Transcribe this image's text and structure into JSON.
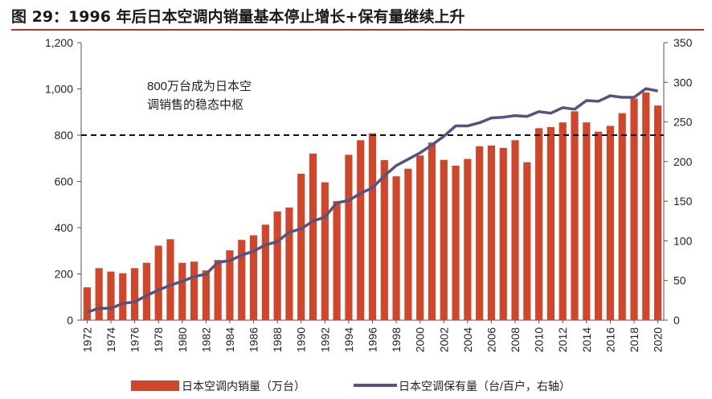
{
  "title": "图 29：1996 年后日本空调内销量基本停止增长+保有量继续上升",
  "chart_data": {
    "type": "bar+line",
    "years": [
      1972,
      1973,
      1974,
      1975,
      1976,
      1977,
      1978,
      1979,
      1980,
      1981,
      1982,
      1983,
      1984,
      1985,
      1986,
      1987,
      1988,
      1989,
      1990,
      1991,
      1992,
      1993,
      1994,
      1995,
      1996,
      1997,
      1998,
      1999,
      2000,
      2001,
      2002,
      2003,
      2004,
      2005,
      2006,
      2007,
      2008,
      2009,
      2010,
      2011,
      2012,
      2013,
      2014,
      2015,
      2016,
      2017,
      2018,
      2019,
      2020
    ],
    "x_tick_labels": [
      "1972",
      "1974",
      "1976",
      "1978",
      "1980",
      "1982",
      "1984",
      "1986",
      "1988",
      "1990",
      "1992",
      "1994",
      "1996",
      "1998",
      "2000",
      "2002",
      "2004",
      "2006",
      "2008",
      "2010",
      "2012",
      "2014",
      "2016",
      "2018",
      "2020"
    ],
    "series": [
      {
        "name": "日本空调内销量（万台）",
        "axis": "left",
        "kind": "bar",
        "color": "#d0462b",
        "values": [
          142,
          225,
          210,
          203,
          225,
          248,
          322,
          350,
          248,
          253,
          215,
          260,
          302,
          347,
          367,
          413,
          470,
          487,
          633,
          720,
          596,
          515,
          715,
          778,
          808,
          692,
          622,
          655,
          712,
          768,
          693,
          668,
          697,
          752,
          755,
          745,
          778,
          683,
          830,
          835,
          855,
          903,
          855,
          815,
          840,
          895,
          958,
          985,
          928
        ]
      },
      {
        "name": "日本空调保有量（台/百户，右轴）",
        "axis": "right",
        "kind": "line",
        "color": "#57527e",
        "values": [
          10,
          15,
          15,
          21,
          23,
          31,
          38,
          44,
          49,
          55,
          58,
          73,
          75,
          82,
          87,
          95,
          99,
          111,
          115,
          125,
          130,
          148,
          151,
          160,
          167,
          182,
          195,
          203,
          211,
          221,
          232,
          245,
          245,
          249,
          255,
          256,
          258,
          257,
          263,
          261,
          268,
          266,
          277,
          276,
          283,
          281,
          281,
          292,
          289
        ]
      }
    ],
    "y_left": {
      "min": 0,
      "max": 1200,
      "ticks": [
        0,
        200,
        400,
        600,
        800,
        1000,
        1200
      ],
      "tick_labels": [
        "0",
        "200",
        "400",
        "600",
        "800",
        "1,000",
        "1,200"
      ]
    },
    "y_right": {
      "min": 0,
      "max": 350,
      "ticks": [
        0,
        50,
        100,
        150,
        200,
        250,
        300,
        350
      ],
      "tick_labels": [
        "0",
        "50",
        "100",
        "150",
        "200",
        "250",
        "300",
        "350"
      ]
    },
    "reference_line": {
      "value": 800,
      "axis": "left",
      "style": "dashed",
      "color": "#111111"
    },
    "annotation": [
      "800万台成为日本空",
      "调销售的稳态中枢"
    ],
    "legend": {
      "position": "bottom",
      "entries": [
        "日本空调内销量（万台）",
        "日本空调保有量（台/百户，右轴）"
      ]
    }
  }
}
